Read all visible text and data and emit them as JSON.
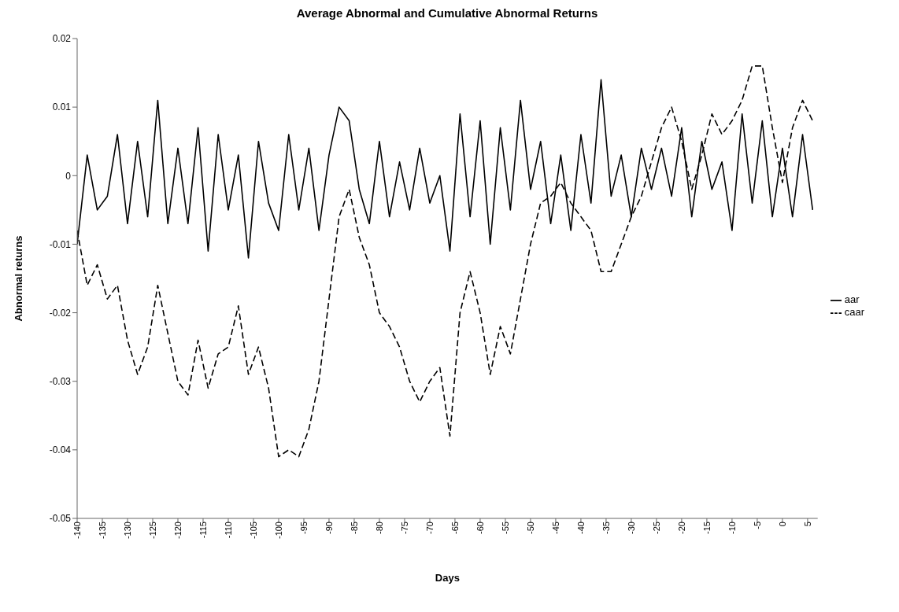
{
  "chart_data": {
    "type": "line",
    "title": "Average Abnormal and Cumulative Abnormal Returns",
    "xlabel": "Days",
    "ylabel": "Abnormal returns",
    "x": [
      -140,
      -138,
      -136,
      -134,
      -132,
      -130,
      -128,
      -126,
      -124,
      -122,
      -120,
      -118,
      -116,
      -114,
      -112,
      -110,
      -108,
      -106,
      -104,
      -102,
      -100,
      -98,
      -96,
      -94,
      -92,
      -90,
      -88,
      -86,
      -84,
      -82,
      -80,
      -78,
      -76,
      -74,
      -72,
      -70,
      -68,
      -66,
      -64,
      -62,
      -60,
      -58,
      -56,
      -54,
      -52,
      -50,
      -48,
      -46,
      -44,
      -42,
      -40,
      -38,
      -36,
      -34,
      -32,
      -30,
      -28,
      -26,
      -24,
      -22,
      -20,
      -18,
      -16,
      -14,
      -12,
      -10,
      -8,
      -6,
      -4,
      -2,
      0,
      2,
      4,
      6
    ],
    "series": [
      {
        "name": "aar",
        "color": "#000000",
        "line_style": "solid",
        "values": [
          -0.01,
          0.003,
          -0.005,
          -0.003,
          0.006,
          -0.007,
          0.005,
          -0.006,
          0.011,
          -0.007,
          0.004,
          -0.007,
          0.007,
          -0.011,
          0.006,
          -0.005,
          0.003,
          -0.012,
          0.005,
          -0.004,
          -0.008,
          0.006,
          -0.005,
          0.004,
          -0.008,
          0.003,
          0.01,
          0.008,
          -0.002,
          -0.007,
          0.005,
          -0.006,
          0.002,
          -0.005,
          0.004,
          -0.004,
          0.0,
          -0.011,
          0.009,
          -0.006,
          0.008,
          -0.01,
          0.007,
          -0.005,
          0.011,
          -0.002,
          0.005,
          -0.007,
          0.003,
          -0.008,
          0.006,
          -0.004,
          0.014,
          -0.003,
          0.003,
          -0.006,
          0.004,
          -0.002,
          0.004,
          -0.003,
          0.007,
          -0.006,
          0.005,
          -0.002,
          0.002,
          -0.008,
          0.009,
          -0.004,
          0.008,
          -0.006,
          0.004,
          -0.006,
          0.006,
          -0.005
        ]
      },
      {
        "name": "caar",
        "color": "#000000",
        "line_style": "dashed",
        "values": [
          -0.008,
          -0.016,
          -0.013,
          -0.018,
          -0.016,
          -0.024,
          -0.029,
          -0.025,
          -0.016,
          -0.023,
          -0.03,
          -0.032,
          -0.024,
          -0.031,
          -0.026,
          -0.025,
          -0.019,
          -0.029,
          -0.025,
          -0.031,
          -0.041,
          -0.04,
          -0.041,
          -0.037,
          -0.03,
          -0.018,
          -0.006,
          -0.002,
          -0.009,
          -0.013,
          -0.02,
          -0.022,
          -0.025,
          -0.03,
          -0.033,
          -0.03,
          -0.028,
          -0.038,
          -0.02,
          -0.014,
          -0.02,
          -0.029,
          -0.022,
          -0.026,
          -0.018,
          -0.01,
          -0.004,
          -0.003,
          -0.001,
          -0.004,
          -0.006,
          -0.008,
          -0.014,
          -0.014,
          -0.01,
          -0.006,
          -0.003,
          0.002,
          0.007,
          0.01,
          0.005,
          -0.002,
          0.003,
          0.009,
          0.006,
          0.008,
          0.011,
          0.016,
          0.016,
          0.007,
          -0.001,
          0.007,
          0.011,
          0.008
        ]
      }
    ],
    "xlim": [
      -140,
      7
    ],
    "xticks": [
      -140,
      -135,
      -130,
      -125,
      -120,
      -115,
      -110,
      -105,
      -100,
      -95,
      -90,
      -85,
      -80,
      -75,
      -70,
      -65,
      -60,
      -55,
      -50,
      -45,
      -40,
      -35,
      -30,
      -25,
      -20,
      -15,
      -10,
      -5,
      0,
      5
    ],
    "ylim": [
      -0.05,
      0.02
    ],
    "yticks": [
      -0.05,
      -0.04,
      -0.03,
      -0.02,
      -0.01,
      0,
      0.01,
      0.02
    ],
    "grid": false,
    "legend": "right",
    "marker": "none"
  }
}
